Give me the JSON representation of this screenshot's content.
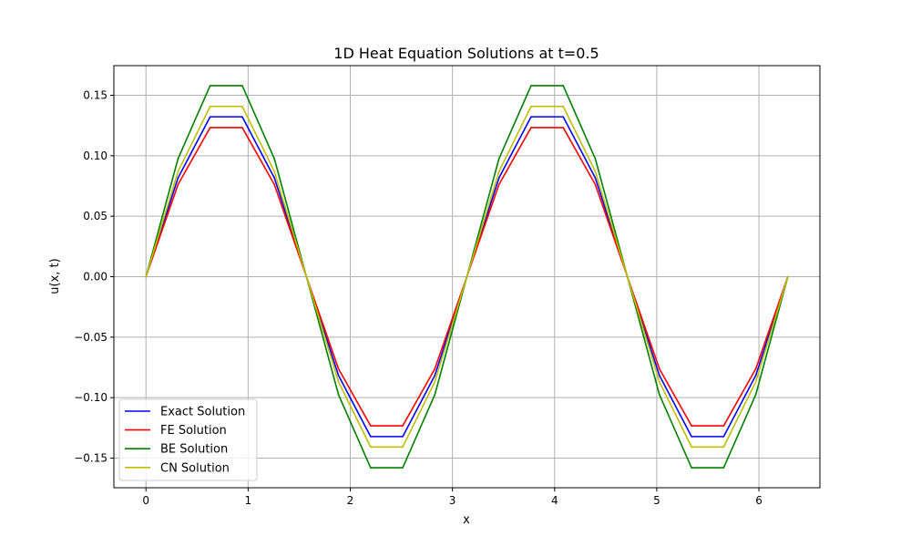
{
  "chart_data": {
    "type": "line",
    "title": "1D Heat Equation Solutions at t=0.5",
    "xlabel": "x",
    "ylabel": "u(x, t)",
    "xlim": [
      -0.314,
      6.597
    ],
    "ylim": [
      -0.1745,
      0.1745
    ],
    "xticks": [
      0,
      1,
      2,
      3,
      4,
      5,
      6
    ],
    "yticks": [
      -0.15,
      -0.1,
      -0.05,
      0.0,
      0.05,
      0.1,
      0.15
    ],
    "ytick_labels": [
      "−0.15",
      "−0.10",
      "−0.05",
      "0.00",
      "0.05",
      "0.10",
      "0.15"
    ],
    "grid": true,
    "legend_position": "lower-left",
    "x": [
      0.0,
      0.3142,
      0.6283,
      0.9425,
      1.2566,
      1.5708,
      1.885,
      2.1991,
      2.5133,
      2.8274,
      3.1416,
      3.4558,
      3.7699,
      4.0841,
      4.3982,
      4.7124,
      5.0265,
      5.3407,
      5.6549,
      5.969,
      6.2832
    ],
    "series": [
      {
        "name": "Exact Solution",
        "color": "#0000ff",
        "values": [
          0.0,
          0.0817,
          0.1322,
          0.1322,
          0.0817,
          0.0,
          -0.0817,
          -0.1322,
          -0.1322,
          -0.0817,
          0.0,
          0.0817,
          0.1322,
          0.1322,
          0.0817,
          0.0,
          -0.0817,
          -0.1322,
          -0.1322,
          -0.0817,
          0.0
        ]
      },
      {
        "name": "FE Solution",
        "color": "#ff0000",
        "values": [
          0.0,
          0.0762,
          0.1233,
          0.1233,
          0.0762,
          0.0,
          -0.0762,
          -0.1233,
          -0.1233,
          -0.0762,
          0.0,
          0.0762,
          0.1233,
          0.1233,
          0.0762,
          0.0,
          -0.0762,
          -0.1233,
          -0.1233,
          -0.0762,
          0.0
        ]
      },
      {
        "name": "BE Solution",
        "color": "#008000",
        "values": [
          0.0,
          0.0976,
          0.158,
          0.158,
          0.0976,
          0.0,
          -0.0976,
          -0.158,
          -0.158,
          -0.0976,
          0.0,
          0.0976,
          0.158,
          0.158,
          0.0976,
          0.0,
          -0.0976,
          -0.158,
          -0.158,
          -0.0976,
          0.0
        ]
      },
      {
        "name": "CN Solution",
        "color": "#bfbf00",
        "values": [
          0.0,
          0.087,
          0.1408,
          0.1408,
          0.087,
          0.0,
          -0.087,
          -0.1408,
          -0.1408,
          -0.087,
          0.0,
          0.087,
          0.1408,
          0.1408,
          0.087,
          0.0,
          -0.087,
          -0.1408,
          -0.1408,
          -0.087,
          0.0
        ]
      }
    ]
  }
}
